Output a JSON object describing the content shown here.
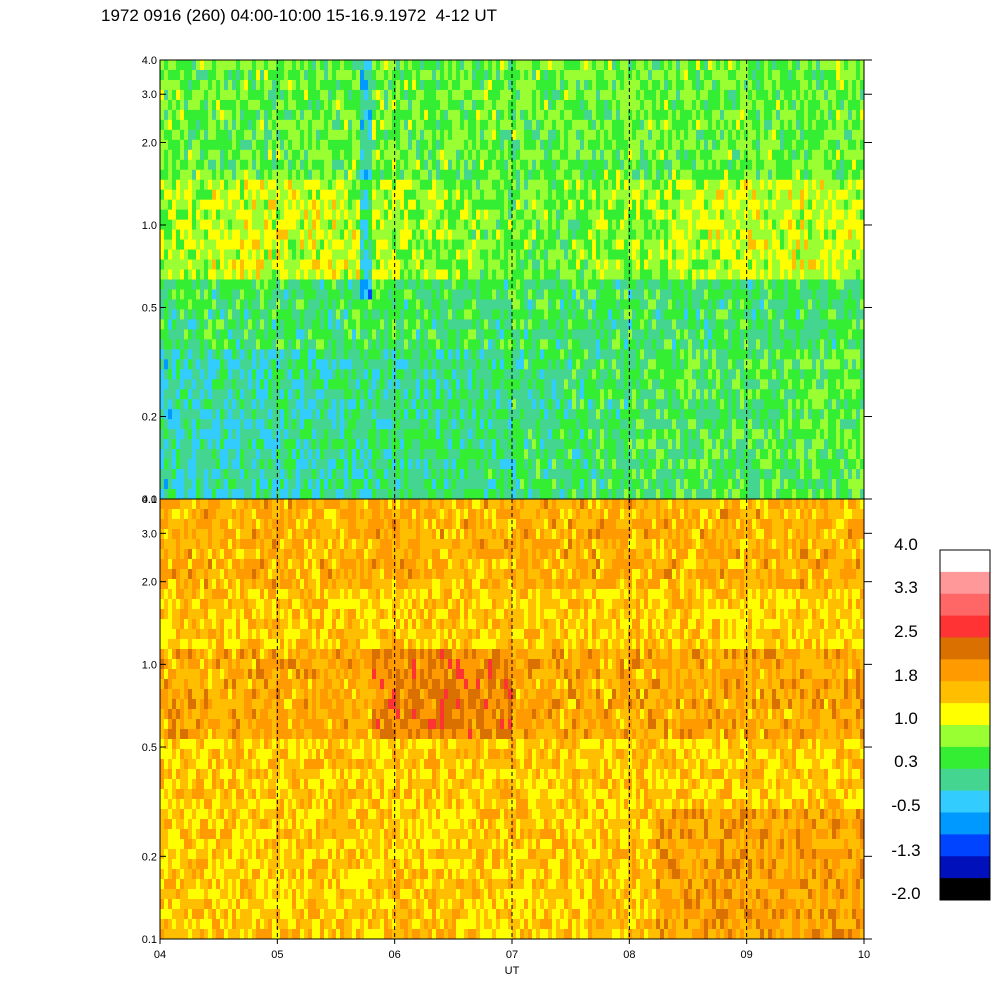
{
  "chart_data": [
    {
      "type": "heatmap",
      "panel": "upper",
      "title": "1972 0916 (260) 04:00-10:00 15-16.9.1972  4-12 UT",
      "xlabel": "UT",
      "ylabel": "",
      "x_ticks": [
        "04",
        "05",
        "06",
        "07",
        "08",
        "09",
        "10"
      ],
      "x_range": [
        4,
        10
      ],
      "y_ticks": [
        {
          "label": "0.1",
          "value": 0.1
        },
        {
          "label": "0.2",
          "value": 0.2
        },
        {
          "label": "0.5",
          "value": 0.5
        },
        {
          "label": "1.0",
          "value": 1.0
        },
        {
          "label": "2.0",
          "value": 2.0
        },
        {
          "label": "3.0",
          "value": 3.0
        },
        {
          "label": "4.0",
          "value": 4.0
        }
      ],
      "y_range": [
        0.1,
        4.0
      ],
      "y_scale": "log",
      "hour_markers": [
        5,
        6,
        7,
        8,
        9
      ],
      "dominant_levels": "mostly -0.5 to 1.0; yellow band near 0.8-1.5; cyan/blue lower region"
    },
    {
      "type": "heatmap",
      "panel": "lower",
      "xlabel": "UT",
      "x_ticks": [
        "04",
        "05",
        "06",
        "07",
        "08",
        "09",
        "10"
      ],
      "x_range": [
        4,
        10
      ],
      "y_ticks": [
        {
          "label": "0.1",
          "value": 0.1
        },
        {
          "label": "0.2",
          "value": 0.2
        },
        {
          "label": "0.5",
          "value": 0.5
        },
        {
          "label": "1.0",
          "value": 1.0
        },
        {
          "label": "2.0",
          "value": 2.0
        },
        {
          "label": "3.0",
          "value": 3.0
        },
        {
          "label": "4.0",
          "value": 4.0
        }
      ],
      "y_range": [
        0.1,
        4.0
      ],
      "y_scale": "log",
      "hour_markers": [
        5,
        6,
        7,
        8,
        9
      ],
      "dominant_levels": "mostly 1.0 to 2.2; darker orange band near 0.7-1.0 around 06-07 UT"
    }
  ],
  "colorbar": {
    "labels": [
      "4.0",
      "3.3",
      "2.5",
      "1.8",
      "1.0",
      "0.3",
      "-0.5",
      "-1.3",
      "-2.0"
    ],
    "colors_top_to_bottom": [
      "#ffffff",
      "#ff9999",
      "#ff6666",
      "#ff3333",
      "#d97000",
      "#ff9a00",
      "#ffbf00",
      "#ffff00",
      "#99ff33",
      "#33ee33",
      "#44d690",
      "#33ccff",
      "#0099ff",
      "#0044ff",
      "#0011bb",
      "#000000"
    ]
  }
}
